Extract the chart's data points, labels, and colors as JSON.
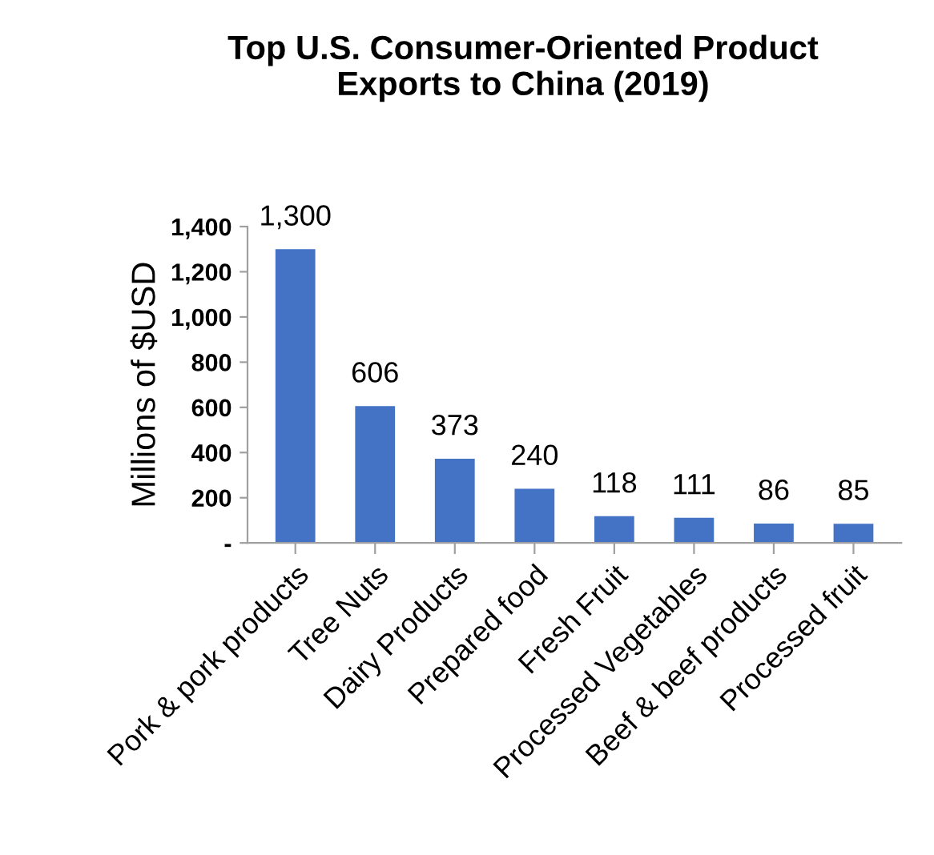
{
  "chart_data": {
    "type": "bar",
    "title": "Top U.S. Consumer-Oriented Product\nExports to China (2019)",
    "ylabel": "Millions of $USD",
    "categories": [
      "Pork & pork products",
      "Tree Nuts",
      "Dairy Products",
      "Prepared food",
      "Fresh Fruit",
      "Processed Vegetables",
      "Beef & beef products",
      "Processed fruit"
    ],
    "values": [
      1300,
      606,
      373,
      240,
      118,
      111,
      86,
      85
    ],
    "value_labels": [
      "1,300",
      "606",
      "373",
      "240",
      "118",
      "111",
      "86",
      "85"
    ],
    "color": "#4472c4",
    "ylim": [
      0,
      1400
    ],
    "yticks": [
      {
        "value": 0,
        "label": "-"
      },
      {
        "value": 200,
        "label": "200"
      },
      {
        "value": 400,
        "label": "400"
      },
      {
        "value": 600,
        "label": "600"
      },
      {
        "value": 800,
        "label": "800"
      },
      {
        "value": 1000,
        "label": "1,000"
      },
      {
        "value": 1200,
        "label": "1,200"
      },
      {
        "value": 1400,
        "label": "1,400"
      }
    ],
    "grid": false
  }
}
